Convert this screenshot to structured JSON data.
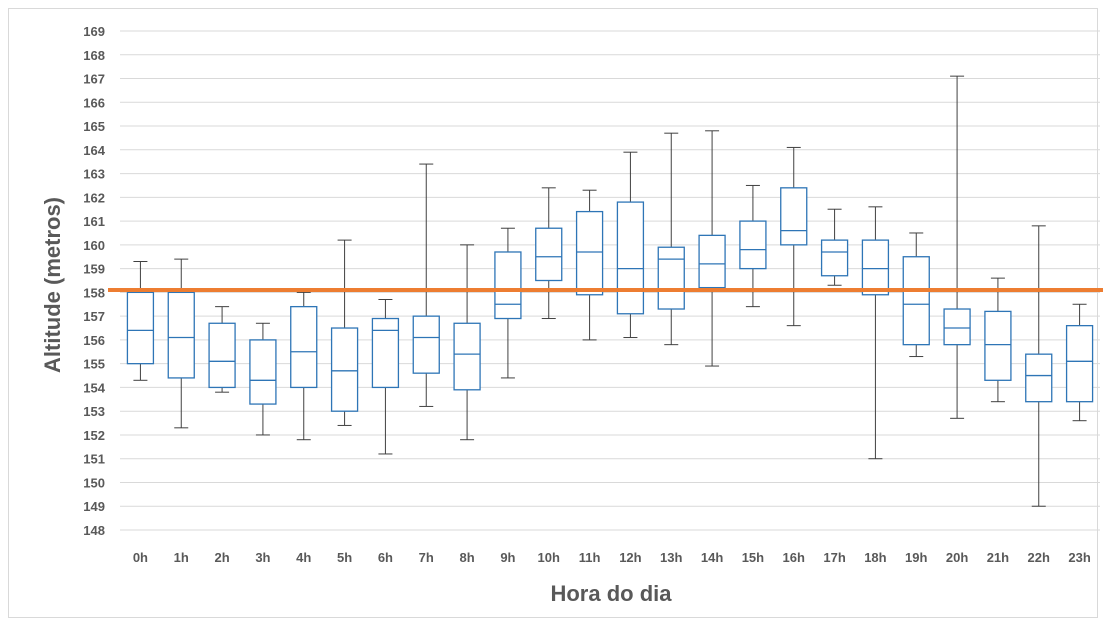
{
  "chart_data": {
    "type": "boxplot",
    "title": "",
    "xlabel": "Hora do dia",
    "ylabel": "Altitude (metros)",
    "ylim": [
      148,
      169
    ],
    "yticks": [
      148,
      149,
      150,
      151,
      152,
      153,
      154,
      155,
      156,
      157,
      158,
      159,
      160,
      161,
      162,
      163,
      164,
      165,
      166,
      167,
      168,
      169
    ],
    "grid": "horizontal",
    "reference_line": {
      "value": 158.1,
      "color": "#ED7D31"
    },
    "box_color": "#2E75B6",
    "whisker_color": "#404040",
    "categories": [
      "0h",
      "1h",
      "2h",
      "3h",
      "4h",
      "5h",
      "6h",
      "7h",
      "8h",
      "9h",
      "10h",
      "11h",
      "12h",
      "13h",
      "14h",
      "15h",
      "16h",
      "17h",
      "18h",
      "19h",
      "20h",
      "21h",
      "22h",
      "23h"
    ],
    "boxes": [
      {
        "min": 154.3,
        "q1": 155.0,
        "median": 156.4,
        "q3": 158.0,
        "max": 159.3
      },
      {
        "min": 152.3,
        "q1": 154.4,
        "median": 156.1,
        "q3": 158.0,
        "max": 159.4
      },
      {
        "min": 153.8,
        "q1": 154.0,
        "median": 155.1,
        "q3": 156.7,
        "max": 157.4
      },
      {
        "min": 152.0,
        "q1": 153.3,
        "median": 154.3,
        "q3": 156.0,
        "max": 156.7
      },
      {
        "min": 151.8,
        "q1": 154.0,
        "median": 155.5,
        "q3": 157.4,
        "max": 158.0
      },
      {
        "min": 152.4,
        "q1": 153.0,
        "median": 154.7,
        "q3": 156.5,
        "max": 160.2
      },
      {
        "min": 151.2,
        "q1": 154.0,
        "median": 156.4,
        "q3": 156.9,
        "max": 157.7
      },
      {
        "min": 153.2,
        "q1": 154.6,
        "median": 156.1,
        "q3": 157.0,
        "max": 163.4
      },
      {
        "min": 151.8,
        "q1": 153.9,
        "median": 155.4,
        "q3": 156.7,
        "max": 160.0
      },
      {
        "min": 154.4,
        "q1": 156.9,
        "median": 157.5,
        "q3": 159.7,
        "max": 160.7
      },
      {
        "min": 156.9,
        "q1": 158.5,
        "median": 159.5,
        "q3": 160.7,
        "max": 162.4
      },
      {
        "min": 156.0,
        "q1": 157.9,
        "median": 159.7,
        "q3": 161.4,
        "max": 162.3
      },
      {
        "min": 156.1,
        "q1": 157.1,
        "median": 159.0,
        "q3": 161.8,
        "max": 163.9
      },
      {
        "min": 155.8,
        "q1": 157.3,
        "median": 159.4,
        "q3": 159.9,
        "max": 164.7
      },
      {
        "min": 154.9,
        "q1": 158.2,
        "median": 159.2,
        "q3": 160.4,
        "max": 164.8
      },
      {
        "min": 157.4,
        "q1": 159.0,
        "median": 159.8,
        "q3": 161.0,
        "max": 162.5
      },
      {
        "min": 156.6,
        "q1": 160.0,
        "median": 160.6,
        "q3": 162.4,
        "max": 164.1
      },
      {
        "min": 158.3,
        "q1": 158.7,
        "median": 159.7,
        "q3": 160.2,
        "max": 161.5
      },
      {
        "min": 151.0,
        "q1": 157.9,
        "median": 159.0,
        "q3": 160.2,
        "max": 161.6
      },
      {
        "min": 155.3,
        "q1": 155.8,
        "median": 157.5,
        "q3": 159.5,
        "max": 160.5
      },
      {
        "min": 152.7,
        "q1": 155.8,
        "median": 156.5,
        "q3": 157.3,
        "max": 167.1
      },
      {
        "min": 153.4,
        "q1": 154.3,
        "median": 155.8,
        "q3": 157.2,
        "max": 158.6
      },
      {
        "min": 149.0,
        "q1": 153.4,
        "median": 154.5,
        "q3": 155.4,
        "max": 160.8
      },
      {
        "min": 152.6,
        "q1": 153.4,
        "median": 155.1,
        "q3": 156.6,
        "max": 157.5
      }
    ]
  }
}
